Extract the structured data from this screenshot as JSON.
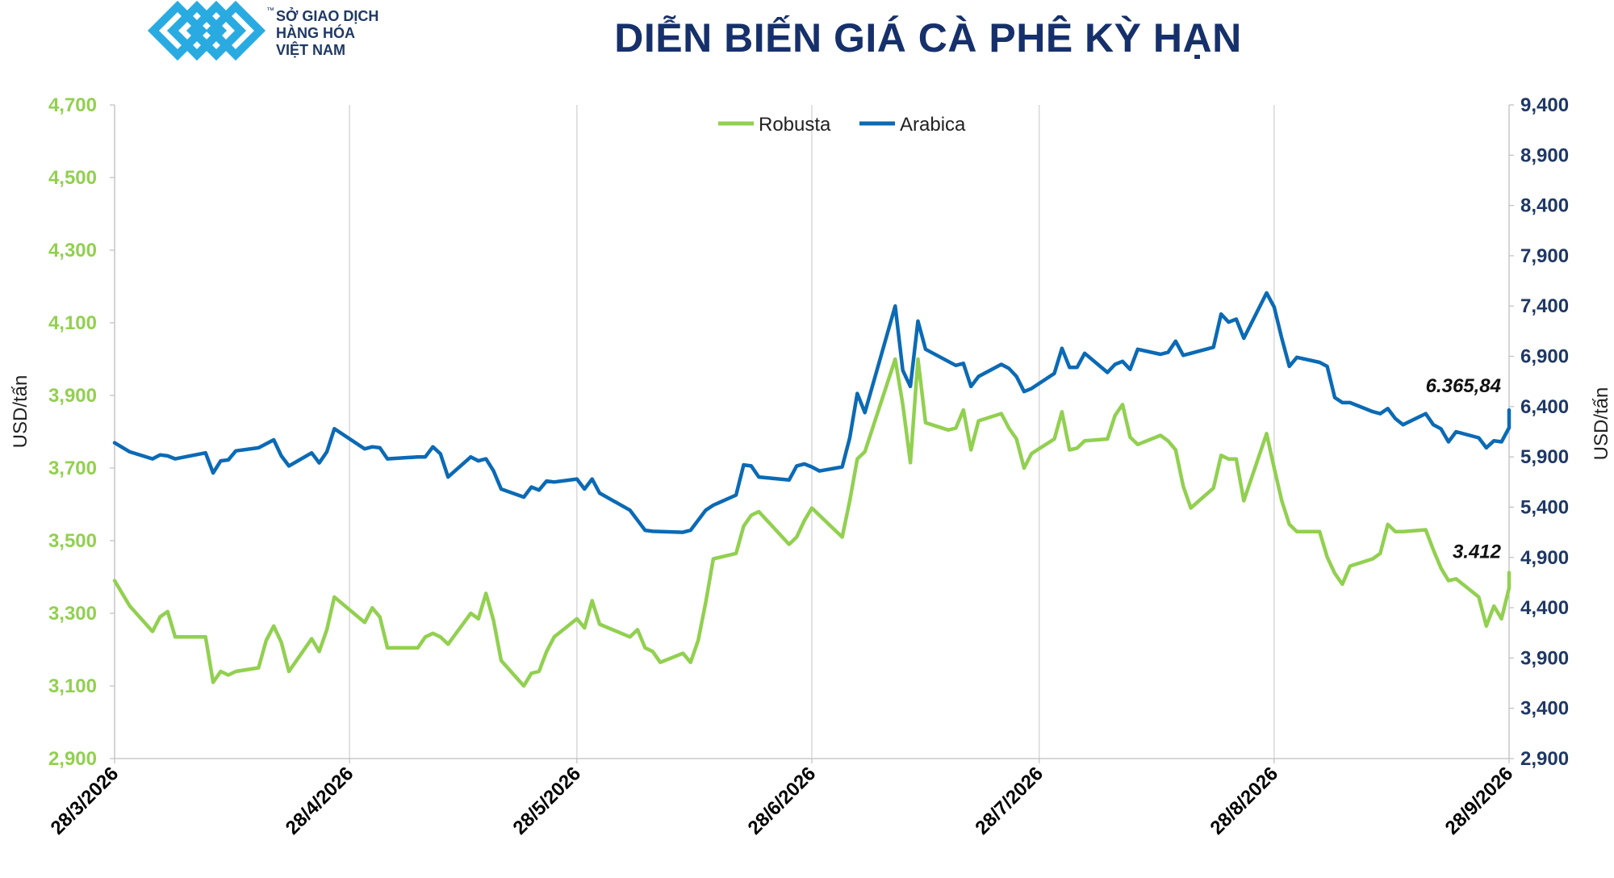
{
  "brand": {
    "line1": "SỞ GIAO DỊCH",
    "line2": "HÀNG HÓA",
    "line3": "VIỆT NAM",
    "tm": "™",
    "color": "#29abe2",
    "text_color": "#1f3864"
  },
  "chart_data": {
    "type": "line",
    "title": "DIỄN BIẾN GIÁ CÀ PHÊ KỲ HẠN",
    "ylabel_left": "USD/tấn",
    "ylabel_right": "USD/tấn",
    "yticks_left": [
      "2,900",
      "3,100",
      "3,300",
      "3,500",
      "3,700",
      "3,900",
      "4,100",
      "4,300",
      "4,500",
      "4,700"
    ],
    "yticks_right": [
      "2,900",
      "3,400",
      "3,900",
      "4,400",
      "4,900",
      "5,400",
      "5,900",
      "6,400",
      "6,900",
      "7,400",
      "7,900",
      "8,400",
      "8,900",
      "9,400"
    ],
    "ylim_left": [
      2900,
      4700
    ],
    "ylim_right": [
      2900,
      9400
    ],
    "xticks": [
      "28/3/2026",
      "28/4/2026",
      "28/5/2026",
      "28/6/2026",
      "28/7/2026",
      "28/8/2026",
      "28/9/2026"
    ],
    "grid": "vertical",
    "legend_position": "top-center",
    "series": [
      {
        "name": "Robusta",
        "axis": "left",
        "color": "#92d050",
        "end_label": "3.412",
        "points": [
          [
            "28/3/2026",
            3390
          ],
          [
            "30/3/2026",
            3320
          ],
          [
            "2/4/2026",
            3250
          ],
          [
            "3/4/2026",
            3290
          ],
          [
            "4/4/2026",
            3305
          ],
          [
            "5/4/2026",
            3235
          ],
          [
            "9/4/2026",
            3235
          ],
          [
            "10/4/2026",
            3110
          ],
          [
            "11/4/2026",
            3140
          ],
          [
            "12/4/2026",
            3130
          ],
          [
            "13/4/2026",
            3140
          ],
          [
            "16/4/2026",
            3150
          ],
          [
            "17/4/2026",
            3225
          ],
          [
            "18/4/2026",
            3265
          ],
          [
            "19/4/2026",
            3220
          ],
          [
            "20/4/2026",
            3140
          ],
          [
            "23/4/2026",
            3230
          ],
          [
            "24/4/2026",
            3195
          ],
          [
            "25/4/2026",
            3255
          ],
          [
            "26/4/2026",
            3345
          ],
          [
            "30/4/2026",
            3275
          ],
          [
            "1/5/2026",
            3315
          ],
          [
            "2/5/2026",
            3290
          ],
          [
            "3/5/2026",
            3205
          ],
          [
            "7/5/2026",
            3205
          ],
          [
            "8/5/2026",
            3235
          ],
          [
            "9/5/2026",
            3245
          ],
          [
            "10/5/2026",
            3235
          ],
          [
            "11/5/2026",
            3215
          ],
          [
            "14/5/2026",
            3300
          ],
          [
            "15/5/2026",
            3285
          ],
          [
            "16/5/2026",
            3355
          ],
          [
            "17/5/2026",
            3280
          ],
          [
            "18/5/2026",
            3170
          ],
          [
            "21/5/2026",
            3100
          ],
          [
            "22/5/2026",
            3135
          ],
          [
            "23/5/2026",
            3140
          ],
          [
            "24/5/2026",
            3195
          ],
          [
            "25/5/2026",
            3235
          ],
          [
            "28/5/2026",
            3285
          ],
          [
            "29/5/2026",
            3260
          ],
          [
            "30/5/2026",
            3335
          ],
          [
            "31/5/2026",
            3270
          ],
          [
            "4/6/2026",
            3235
          ],
          [
            "5/6/2026",
            3255
          ],
          [
            "6/6/2026",
            3205
          ],
          [
            "7/6/2026",
            3195
          ],
          [
            "8/6/2026",
            3165
          ],
          [
            "11/6/2026",
            3190
          ],
          [
            "12/6/2026",
            3165
          ],
          [
            "13/6/2026",
            3225
          ],
          [
            "14/6/2026",
            3330
          ],
          [
            "15/6/2026",
            3450
          ],
          [
            "18/6/2026",
            3465
          ],
          [
            "19/6/2026",
            3540
          ],
          [
            "20/6/2026",
            3570
          ],
          [
            "21/6/2026",
            3580
          ],
          [
            "25/6/2026",
            3490
          ],
          [
            "26/6/2026",
            3510
          ],
          [
            "27/6/2026",
            3555
          ],
          [
            "28/6/2026",
            3590
          ],
          [
            "2/7/2026",
            3510
          ],
          [
            "3/7/2026",
            3610
          ],
          [
            "4/7/2026",
            3725
          ],
          [
            "5/7/2026",
            3745
          ],
          [
            "9/7/2026",
            4000
          ],
          [
            "10/7/2026",
            3875
          ],
          [
            "11/7/2026",
            3715
          ],
          [
            "12/7/2026",
            4000
          ],
          [
            "13/7/2026",
            3825
          ],
          [
            "16/7/2026",
            3805
          ],
          [
            "17/7/2026",
            3810
          ],
          [
            "18/7/2026",
            3860
          ],
          [
            "19/7/2026",
            3750
          ],
          [
            "20/7/2026",
            3830
          ],
          [
            "23/7/2026",
            3850
          ],
          [
            "24/7/2026",
            3810
          ],
          [
            "25/7/2026",
            3780
          ],
          [
            "26/7/2026",
            3700
          ],
          [
            "27/7/2026",
            3740
          ],
          [
            "30/7/2026",
            3780
          ],
          [
            "31/7/2026",
            3855
          ],
          [
            "1/8/2026",
            3750
          ],
          [
            "2/8/2026",
            3755
          ],
          [
            "3/8/2026",
            3775
          ],
          [
            "6/8/2026",
            3780
          ],
          [
            "7/8/2026",
            3845
          ],
          [
            "8/8/2026",
            3875
          ],
          [
            "9/8/2026",
            3785
          ],
          [
            "10/8/2026",
            3765
          ],
          [
            "13/8/2026",
            3790
          ],
          [
            "14/8/2026",
            3775
          ],
          [
            "15/8/2026",
            3750
          ],
          [
            "16/8/2026",
            3650
          ],
          [
            "17/8/2026",
            3590
          ],
          [
            "20/8/2026",
            3645
          ],
          [
            "21/8/2026",
            3735
          ],
          [
            "22/8/2026",
            3725
          ],
          [
            "23/8/2026",
            3725
          ],
          [
            "24/8/2026",
            3610
          ],
          [
            "27/8/2026",
            3795
          ],
          [
            "28/8/2026",
            3700
          ],
          [
            "29/8/2026",
            3610
          ],
          [
            "30/8/2026",
            3545
          ],
          [
            "31/8/2026",
            3525
          ],
          [
            "3/9/2026",
            3525
          ],
          [
            "4/9/2026",
            3455
          ],
          [
            "5/9/2026",
            3410
          ],
          [
            "6/9/2026",
            3380
          ],
          [
            "7/9/2026",
            3430
          ],
          [
            "10/9/2026",
            3450
          ],
          [
            "11/9/2026",
            3465
          ],
          [
            "12/9/2026",
            3545
          ],
          [
            "13/9/2026",
            3525
          ],
          [
            "14/9/2026",
            3525
          ],
          [
            "17/9/2026",
            3530
          ],
          [
            "18/9/2026",
            3475
          ],
          [
            "19/9/2026",
            3425
          ],
          [
            "20/9/2026",
            3390
          ],
          [
            "21/9/2026",
            3395
          ],
          [
            "24/9/2026",
            3345
          ],
          [
            "25/9/2026",
            3265
          ],
          [
            "26/9/2026",
            3320
          ],
          [
            "27/9/2026",
            3285
          ],
          [
            "28/9/2026",
            3370
          ],
          [
            "28/9/2026",
            3412
          ]
        ]
      },
      {
        "name": "Arabica",
        "axis": "right",
        "color": "#0b6ab5",
        "end_label": "6.365,84",
        "points": [
          [
            "28/3/2026",
            6040
          ],
          [
            "30/3/2026",
            5950
          ],
          [
            "2/4/2026",
            5880
          ],
          [
            "3/4/2026",
            5920
          ],
          [
            "4/4/2026",
            5910
          ],
          [
            "5/4/2026",
            5880
          ],
          [
            "9/4/2026",
            5940
          ],
          [
            "10/4/2026",
            5740
          ],
          [
            "11/4/2026",
            5860
          ],
          [
            "12/4/2026",
            5870
          ],
          [
            "13/4/2026",
            5960
          ],
          [
            "16/4/2026",
            5990
          ],
          [
            "17/4/2026",
            6030
          ],
          [
            "18/4/2026",
            6070
          ],
          [
            "19/4/2026",
            5910
          ],
          [
            "20/4/2026",
            5810
          ],
          [
            "23/4/2026",
            5940
          ],
          [
            "24/4/2026",
            5840
          ],
          [
            "25/4/2026",
            5950
          ],
          [
            "26/4/2026",
            6180
          ],
          [
            "30/4/2026",
            5980
          ],
          [
            "1/5/2026",
            6000
          ],
          [
            "2/5/2026",
            5990
          ],
          [
            "3/5/2026",
            5880
          ],
          [
            "7/5/2026",
            5900
          ],
          [
            "8/5/2026",
            5900
          ],
          [
            "9/5/2026",
            6000
          ],
          [
            "10/5/2026",
            5930
          ],
          [
            "11/5/2026",
            5700
          ],
          [
            "14/5/2026",
            5900
          ],
          [
            "15/5/2026",
            5860
          ],
          [
            "16/5/2026",
            5880
          ],
          [
            "17/5/2026",
            5760
          ],
          [
            "18/5/2026",
            5580
          ],
          [
            "21/5/2026",
            5500
          ],
          [
            "22/5/2026",
            5600
          ],
          [
            "23/5/2026",
            5570
          ],
          [
            "24/5/2026",
            5660
          ],
          [
            "25/5/2026",
            5650
          ],
          [
            "28/5/2026",
            5680
          ],
          [
            "29/5/2026",
            5580
          ],
          [
            "30/5/2026",
            5680
          ],
          [
            "31/5/2026",
            5540
          ],
          [
            "4/6/2026",
            5370
          ],
          [
            "5/6/2026",
            5270
          ],
          [
            "6/6/2026",
            5170
          ],
          [
            "7/6/2026",
            5160
          ],
          [
            "11/6/2026",
            5150
          ],
          [
            "12/6/2026",
            5170
          ],
          [
            "13/6/2026",
            5270
          ],
          [
            "14/6/2026",
            5370
          ],
          [
            "15/6/2026",
            5420
          ],
          [
            "18/6/2026",
            5520
          ],
          [
            "19/6/2026",
            5820
          ],
          [
            "20/6/2026",
            5810
          ],
          [
            "21/6/2026",
            5700
          ],
          [
            "25/6/2026",
            5670
          ],
          [
            "26/6/2026",
            5810
          ],
          [
            "27/6/2026",
            5830
          ],
          [
            "28/6/2026",
            5800
          ],
          [
            "29/6/2026",
            5760
          ],
          [
            "2/7/2026",
            5800
          ],
          [
            "3/7/2026",
            6090
          ],
          [
            "4/7/2026",
            6530
          ],
          [
            "5/7/2026",
            6340
          ],
          [
            "9/7/2026",
            7400
          ],
          [
            "10/7/2026",
            6760
          ],
          [
            "11/7/2026",
            6600
          ],
          [
            "12/7/2026",
            7250
          ],
          [
            "13/7/2026",
            6970
          ],
          [
            "16/7/2026",
            6850
          ],
          [
            "17/7/2026",
            6810
          ],
          [
            "18/7/2026",
            6830
          ],
          [
            "19/7/2026",
            6600
          ],
          [
            "20/7/2026",
            6700
          ],
          [
            "23/7/2026",
            6820
          ],
          [
            "24/7/2026",
            6780
          ],
          [
            "25/7/2026",
            6700
          ],
          [
            "26/7/2026",
            6550
          ],
          [
            "27/7/2026",
            6580
          ],
          [
            "30/7/2026",
            6730
          ],
          [
            "31/7/2026",
            6980
          ],
          [
            "1/8/2026",
            6790
          ],
          [
            "2/8/2026",
            6790
          ],
          [
            "3/8/2026",
            6930
          ],
          [
            "6/8/2026",
            6740
          ],
          [
            "7/8/2026",
            6820
          ],
          [
            "8/8/2026",
            6850
          ],
          [
            "9/8/2026",
            6770
          ],
          [
            "10/8/2026",
            6970
          ],
          [
            "13/8/2026",
            6920
          ],
          [
            "14/8/2026",
            6940
          ],
          [
            "15/8/2026",
            7050
          ],
          [
            "16/8/2026",
            6910
          ],
          [
            "20/8/2026",
            6990
          ],
          [
            "21/8/2026",
            7320
          ],
          [
            "22/8/2026",
            7240
          ],
          [
            "23/8/2026",
            7270
          ],
          [
            "24/8/2026",
            7080
          ],
          [
            "27/8/2026",
            7530
          ],
          [
            "28/8/2026",
            7390
          ],
          [
            "29/8/2026",
            7080
          ],
          [
            "30/8/2026",
            6800
          ],
          [
            "31/8/2026",
            6890
          ],
          [
            "3/9/2026",
            6840
          ],
          [
            "4/9/2026",
            6800
          ],
          [
            "5/9/2026",
            6490
          ],
          [
            "6/9/2026",
            6440
          ],
          [
            "7/9/2026",
            6440
          ],
          [
            "10/9/2026",
            6350
          ],
          [
            "11/9/2026",
            6330
          ],
          [
            "12/9/2026",
            6380
          ],
          [
            "13/9/2026",
            6280
          ],
          [
            "14/9/2026",
            6220
          ],
          [
            "17/9/2026",
            6330
          ],
          [
            "18/9/2026",
            6220
          ],
          [
            "19/9/2026",
            6180
          ],
          [
            "20/9/2026",
            6050
          ],
          [
            "21/9/2026",
            6150
          ],
          [
            "24/9/2026",
            6090
          ],
          [
            "25/9/2026",
            5990
          ],
          [
            "26/9/2026",
            6060
          ],
          [
            "27/9/2026",
            6050
          ],
          [
            "28/9/2026",
            6190
          ],
          [
            "28/9/2026",
            6365.84
          ]
        ]
      }
    ]
  }
}
